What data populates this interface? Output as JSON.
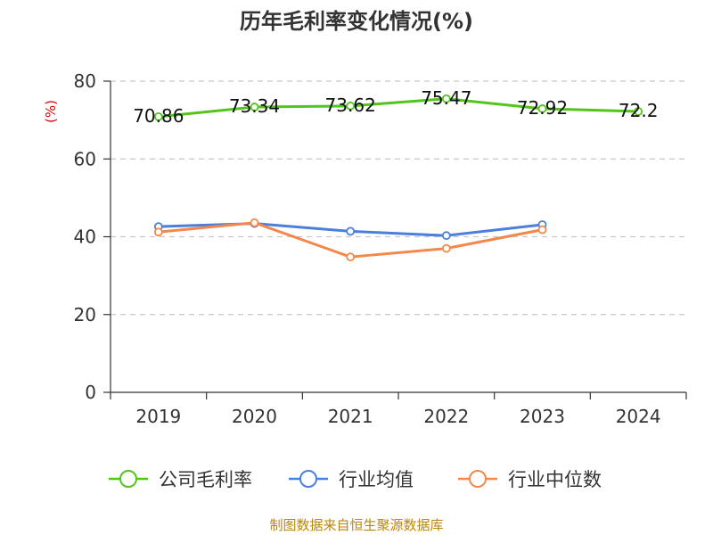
{
  "chart_data": {
    "type": "line",
    "title": "历年毛利率变化情况(%)",
    "ylabel": "(%)",
    "categories": [
      "2019",
      "2020",
      "2021",
      "2022",
      "2023",
      "2024"
    ],
    "ylim": [
      0,
      80
    ],
    "yticks": [
      "0",
      "20",
      "40",
      "60",
      "80"
    ],
    "grid": true,
    "legend_position": "bottom",
    "series": [
      {
        "name": "公司毛利率",
        "color": "#52c41a",
        "values": [
          70.86,
          73.34,
          73.62,
          75.47,
          72.92,
          72.2
        ],
        "labels": [
          "70.86",
          "73.34",
          "73.62",
          "75.47",
          "72.92",
          "72.2"
        ]
      },
      {
        "name": "行业均值",
        "color": "#4a7fdc",
        "values": [
          42.6,
          43.4,
          41.4,
          40.3,
          43.1,
          null
        ]
      },
      {
        "name": "行业中位数",
        "color": "#f4874b",
        "values": [
          41.2,
          43.6,
          34.8,
          37.0,
          41.8,
          null
        ]
      }
    ]
  },
  "source": "制图数据来自恒生聚源数据库"
}
